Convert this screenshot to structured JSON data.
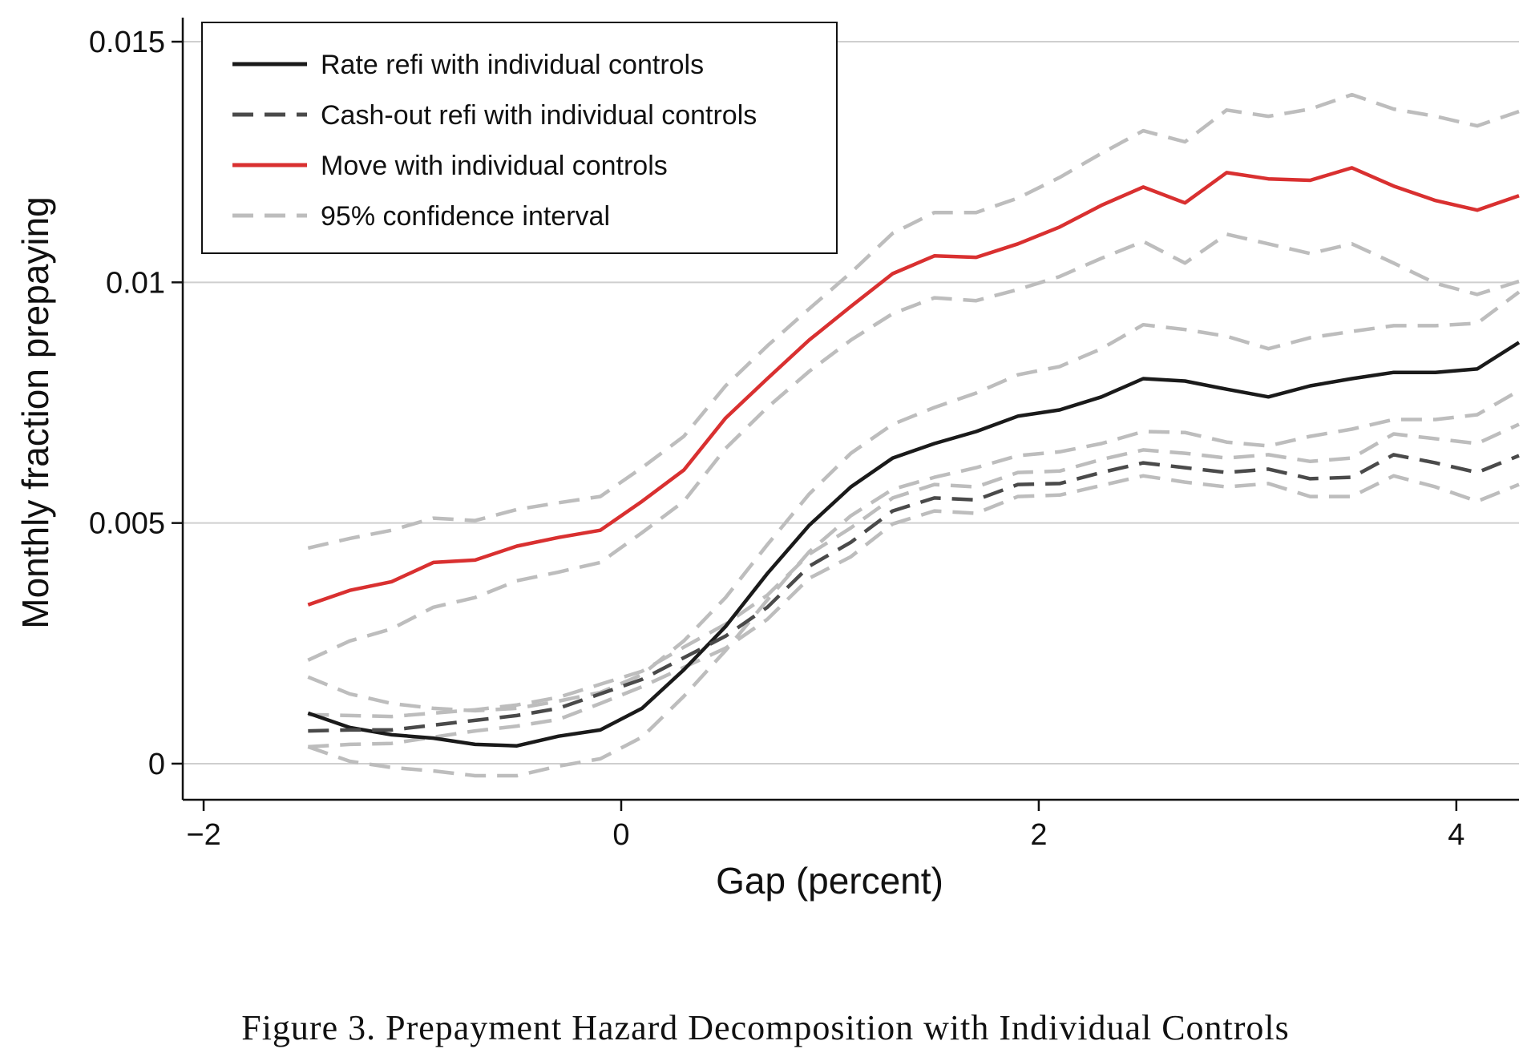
{
  "chart_data": {
    "type": "line",
    "title": "",
    "xlabel": "Gap (percent)",
    "ylabel": "Monthly fraction prepaying",
    "xlim": [
      -2.1,
      4.3
    ],
    "ylim": [
      -0.00075,
      0.0155
    ],
    "x_ticks": [
      -2,
      0,
      2,
      4
    ],
    "x_tick_labels": [
      "−2",
      "0",
      "2",
      "4"
    ],
    "y_ticks": [
      0,
      0.005,
      0.01,
      0.015
    ],
    "y_tick_labels": [
      "0",
      "0.005",
      "0.01",
      "0.015"
    ],
    "grid": "horizontal",
    "legend_position": "top-left",
    "x": [
      -1.5,
      -1.3,
      -1.1,
      -0.9,
      -0.7,
      -0.5,
      -0.3,
      -0.1,
      0.1,
      0.3,
      0.5,
      0.7,
      0.9,
      1.1,
      1.3,
      1.5,
      1.7,
      1.9,
      2.1,
      2.3,
      2.5,
      2.7,
      2.9,
      3.1,
      3.3,
      3.5,
      3.7,
      3.9,
      4.1,
      4.3
    ],
    "series": [
      {
        "name": "Rate refi with individual controls",
        "color": "#1a1a1a",
        "style": "solid",
        "values": [
          0.00105,
          0.00075,
          0.0006,
          0.00053,
          0.0004,
          0.00037,
          0.00057,
          0.0007,
          0.00115,
          0.00195,
          0.00285,
          0.00395,
          0.00495,
          0.00575,
          0.00635,
          0.00665,
          0.0069,
          0.00722,
          0.00735,
          0.00762,
          0.008,
          0.00795,
          0.00778,
          0.00762,
          0.00785,
          0.008,
          0.00813,
          0.00813,
          0.0082,
          0.00875
        ],
        "ci_lower": [
          0.00035,
          5e-05,
          -8e-05,
          -0.00015,
          -0.00025,
          -0.00025,
          -5e-05,
          0.0001,
          0.00055,
          0.0014,
          0.00235,
          0.0034,
          0.0044,
          0.00515,
          0.0057,
          0.00595,
          0.00615,
          0.0064,
          0.00648,
          0.00665,
          0.0069,
          0.00688,
          0.00668,
          0.0066,
          0.0068,
          0.00695,
          0.00715,
          0.00715,
          0.00725,
          0.00775
        ],
        "ci_upper": [
          0.0018,
          0.00145,
          0.00125,
          0.00115,
          0.0011,
          0.00115,
          0.0013,
          0.00148,
          0.00185,
          0.00255,
          0.00345,
          0.00455,
          0.0056,
          0.00645,
          0.00705,
          0.0074,
          0.0077,
          0.00808,
          0.00825,
          0.00862,
          0.00912,
          0.00902,
          0.00888,
          0.00862,
          0.00885,
          0.00898,
          0.0091,
          0.0091,
          0.00915,
          0.0098
        ]
      },
      {
        "name": "Cash-out refi with individual controls",
        "color": "#4a4a4a",
        "style": "dashed",
        "values": [
          0.00068,
          0.0007,
          0.0007,
          0.0008,
          0.0009,
          0.001,
          0.00115,
          0.00145,
          0.00175,
          0.0022,
          0.00265,
          0.00325,
          0.0041,
          0.0046,
          0.00525,
          0.00552,
          0.00548,
          0.0058,
          0.00582,
          0.00605,
          0.00625,
          0.00615,
          0.00605,
          0.00612,
          0.00592,
          0.00595,
          0.00642,
          0.00625,
          0.00605,
          0.0064
        ],
        "ci_lower": [
          0.00035,
          0.0004,
          0.00042,
          0.00055,
          0.00068,
          0.00078,
          0.00092,
          0.00125,
          0.0016,
          0.002,
          0.0024,
          0.003,
          0.00385,
          0.0043,
          0.00498,
          0.00525,
          0.0052,
          0.00555,
          0.00558,
          0.00578,
          0.00598,
          0.00585,
          0.00575,
          0.00582,
          0.00555,
          0.00555,
          0.00598,
          0.00575,
          0.00545,
          0.0058
        ],
        "ci_upper": [
          0.00102,
          0.001,
          0.00098,
          0.00105,
          0.00112,
          0.00122,
          0.00138,
          0.00165,
          0.00192,
          0.00242,
          0.0029,
          0.0035,
          0.00435,
          0.0049,
          0.00552,
          0.0058,
          0.00575,
          0.00605,
          0.00608,
          0.00632,
          0.00652,
          0.00645,
          0.00635,
          0.00642,
          0.00628,
          0.00635,
          0.00685,
          0.00675,
          0.00665,
          0.00705
        ]
      },
      {
        "name": "Move with individual controls",
        "color": "#d93030",
        "style": "solid",
        "values": [
          0.0033,
          0.0036,
          0.00378,
          0.00418,
          0.00423,
          0.00452,
          0.0047,
          0.00485,
          0.00545,
          0.0061,
          0.00718,
          0.008,
          0.0088,
          0.0095,
          0.01018,
          0.01055,
          0.01052,
          0.0108,
          0.01115,
          0.0116,
          0.01198,
          0.01165,
          0.01228,
          0.01215,
          0.01212,
          0.01238,
          0.012,
          0.0117,
          0.0115,
          0.0118
        ],
        "ci_lower": [
          0.00215,
          0.00255,
          0.0028,
          0.00325,
          0.00345,
          0.0038,
          0.00398,
          0.00418,
          0.0048,
          0.00545,
          0.00655,
          0.0074,
          0.00815,
          0.0088,
          0.00935,
          0.00968,
          0.00962,
          0.00985,
          0.01012,
          0.0105,
          0.01085,
          0.0104,
          0.011,
          0.0108,
          0.0106,
          0.0108,
          0.0104,
          0.00998,
          0.00975,
          0.01002
        ],
        "ci_upper": [
          0.00448,
          0.00468,
          0.00485,
          0.0051,
          0.00505,
          0.00528,
          0.00542,
          0.00555,
          0.00615,
          0.0068,
          0.00785,
          0.00868,
          0.00945,
          0.0102,
          0.01102,
          0.01145,
          0.01145,
          0.01175,
          0.01218,
          0.01268,
          0.01315,
          0.01292,
          0.01358,
          0.01345,
          0.0136,
          0.0139,
          0.0136,
          0.01345,
          0.01325,
          0.01355
        ]
      }
    ],
    "ci_legend": {
      "name": "95% confidence interval",
      "color": "#bdbdbd",
      "style": "dashed"
    }
  },
  "caption": "Figure 3. Prepayment Hazard Decomposition with Individual Controls"
}
